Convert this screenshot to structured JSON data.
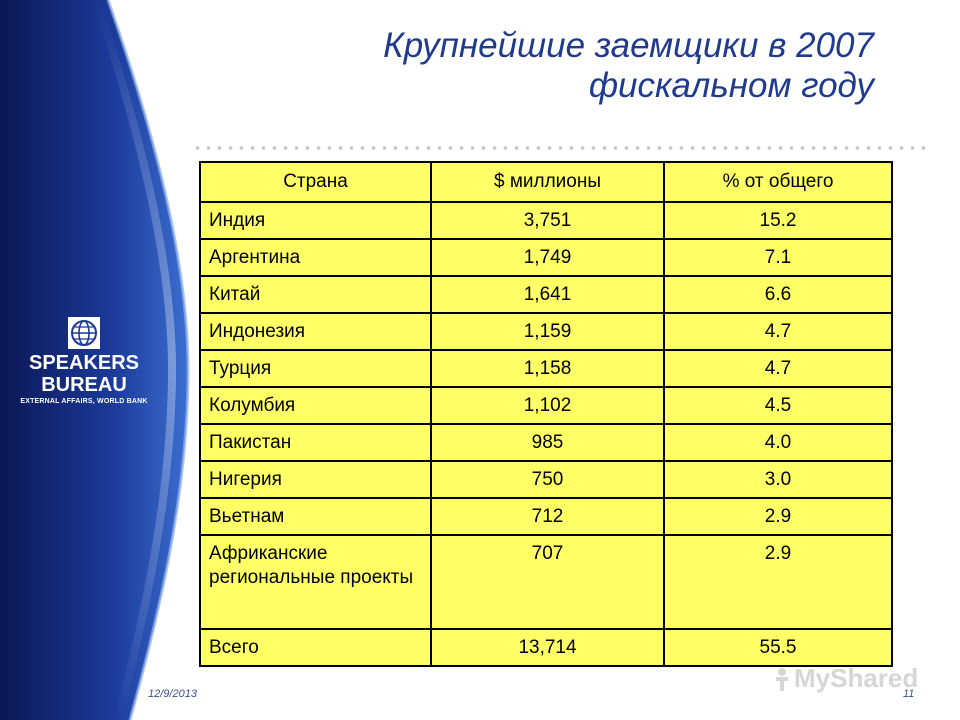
{
  "slide": {
    "title_line1": "Крупнейшие заемщики в 2007",
    "title_line2": "фискальном году",
    "date": "12/9/2013",
    "page_number": "11"
  },
  "logo": {
    "line1": "SPEAKERS",
    "line2": "BUREAU",
    "line3": "EXTERNAL AFFAIRS, WORLD BANK"
  },
  "table": {
    "headers": [
      "Страна",
      "$ миллионы",
      "% от общего"
    ],
    "rows": [
      [
        "Индия",
        "3,751",
        "15.2"
      ],
      [
        "Аргентина",
        "1,749",
        "7.1"
      ],
      [
        "Китай",
        "1,641",
        "6.6"
      ],
      [
        "Индонезия",
        "1,159",
        "4.7"
      ],
      [
        "Турция",
        "1,158",
        "4.7"
      ],
      [
        "Колумбия",
        "1,102",
        "4.5"
      ],
      [
        "Пакистан",
        "985",
        "4.0"
      ],
      [
        "Нигерия",
        "750",
        "3.0"
      ],
      [
        "Вьетнам",
        "712",
        "2.9"
      ],
      [
        "Африканские региональные проекты",
        "707",
        "2.9"
      ],
      [
        "Всего",
        "13,714",
        "55.5"
      ]
    ]
  },
  "watermark": {
    "text": "MyShared"
  },
  "colors": {
    "sidebar_dark": "#0b1a5c",
    "sidebar_light": "#2f5fc0",
    "title": "#1f3a8f",
    "table_fill": "#ffff66"
  }
}
